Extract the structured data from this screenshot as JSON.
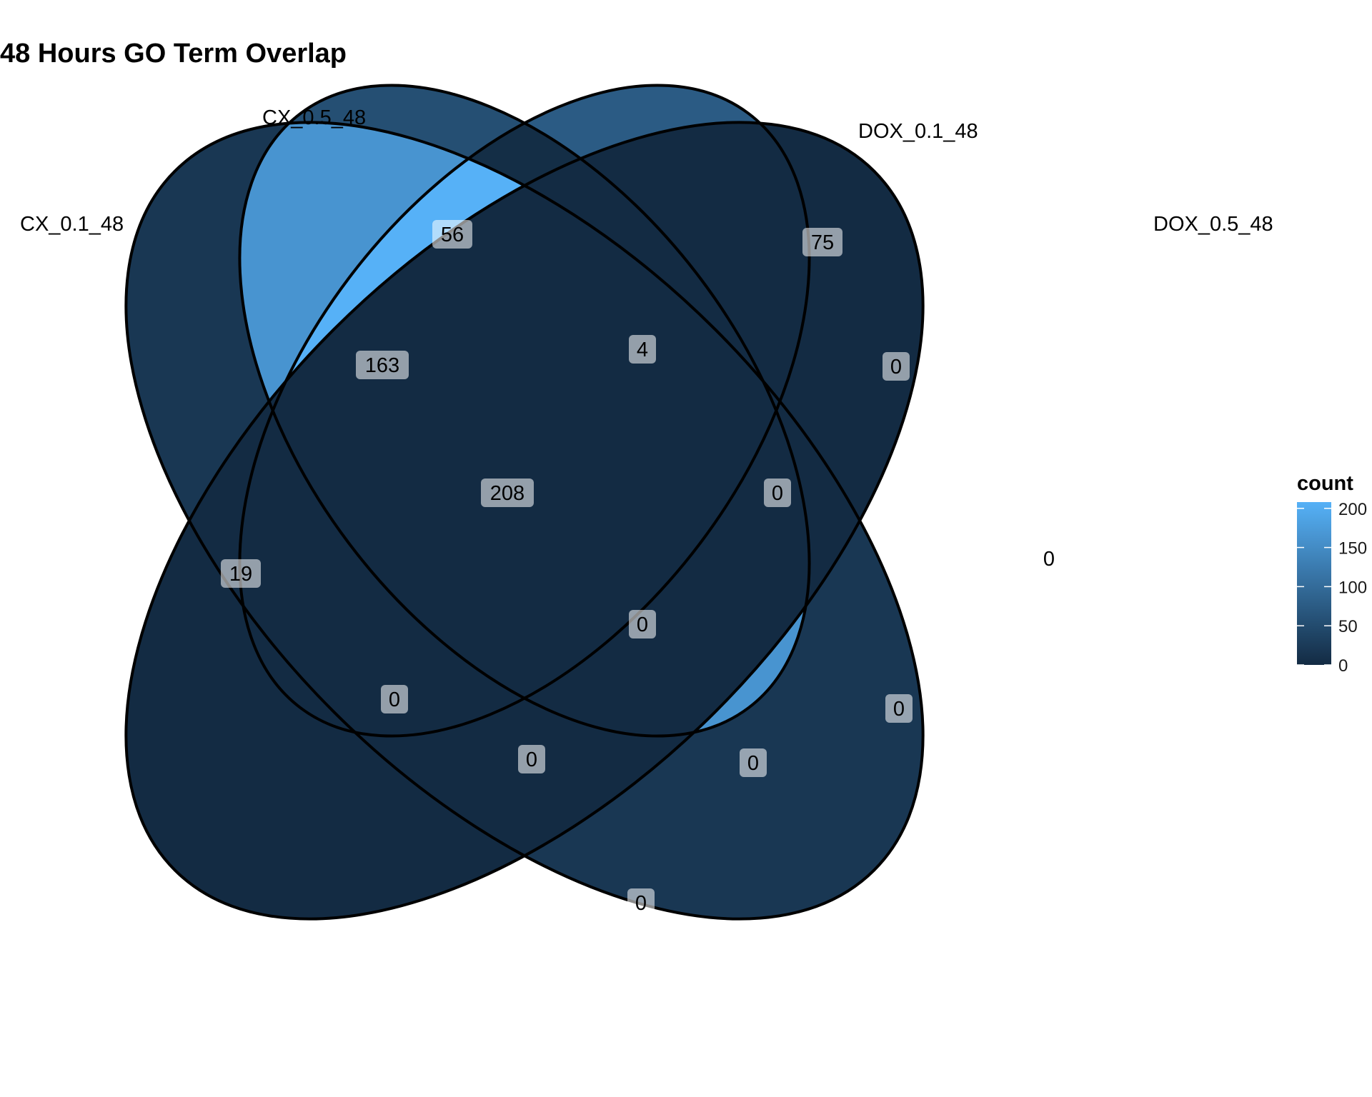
{
  "title": "48 Hours GO Term Overlap",
  "sets": [
    "CX_0.1_48",
    "CX_0.5_48",
    "DOX_0.1_48",
    "DOX_0.5_48"
  ],
  "chart_data": {
    "type": "venn",
    "title": "48 Hours GO Term Overlap",
    "sets": [
      "CX_0.1_48",
      "CX_0.5_48",
      "DOX_0.1_48",
      "DOX_0.5_48"
    ],
    "regions": [
      {
        "sets": [
          "CX_0.1_48"
        ],
        "count": 19
      },
      {
        "sets": [
          "CX_0.5_48"
        ],
        "count": 56
      },
      {
        "sets": [
          "DOX_0.1_48"
        ],
        "count": 75
      },
      {
        "sets": [
          "DOX_0.5_48"
        ],
        "count": 0
      },
      {
        "sets": [
          "CX_0.1_48",
          "CX_0.5_48"
        ],
        "count": 163
      },
      {
        "sets": [
          "CX_0.5_48",
          "DOX_0.1_48"
        ],
        "count": 4
      },
      {
        "sets": [
          "DOX_0.1_48",
          "DOX_0.5_48"
        ],
        "count": 0
      },
      {
        "sets": [
          "CX_0.1_48",
          "CX_0.5_48",
          "DOX_0.1_48"
        ],
        "count": 208
      },
      {
        "sets": [
          "CX_0.5_48",
          "DOX_0.1_48",
          "DOX_0.5_48"
        ],
        "count": 0
      },
      {
        "sets": [
          "CX_0.1_48",
          "CX_0.5_48",
          "DOX_0.1_48",
          "DOX_0.5_48"
        ],
        "count": 0
      },
      {
        "sets": [
          "CX_0.1_48",
          "DOX_0.1_48"
        ],
        "count": 0
      },
      {
        "sets": [
          "CX_0.5_48",
          "DOX_0.5_48"
        ],
        "count": 0
      },
      {
        "sets": [
          "CX_0.1_48",
          "DOX_0.1_48",
          "DOX_0.5_48"
        ],
        "count": 0
      },
      {
        "sets": [
          "CX_0.1_48",
          "CX_0.5_48",
          "DOX_0.5_48"
        ],
        "count": 0
      },
      {
        "sets": [
          "CX_0.1_48",
          "DOX_0.5_48"
        ],
        "count": 0
      }
    ],
    "legend": {
      "title": "count",
      "ticks": [
        0,
        50,
        100,
        150,
        200
      ],
      "tick_labels": [
        "0",
        "50",
        "100",
        "150",
        "200"
      ],
      "range": [
        0,
        208
      ],
      "color_low": "#132B43",
      "color_high": "#56B1F7",
      "placement": "right"
    }
  }
}
